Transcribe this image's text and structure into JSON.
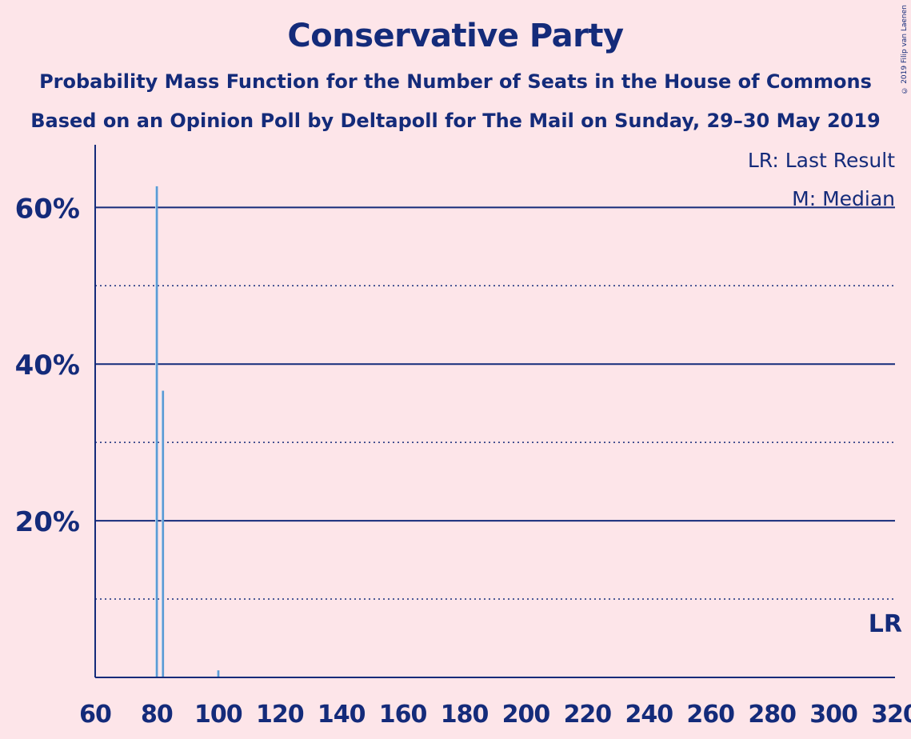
{
  "title": "Conservative Party",
  "subtitle1": "Probability Mass Function for the Number of Seats in the House of Commons",
  "subtitle2": "Based on an Opinion Poll by Deltapoll for The Mail on Sunday, 29–30 May 2019",
  "copyright": "© 2019 Filip van Laenen",
  "legend": {
    "last_result": "LR: Last Result",
    "median": "M: Median"
  },
  "lr_marker": "LR",
  "colors": {
    "background": "#FDE5E9",
    "axis": "#142B7A",
    "bar": "#5B9BD5"
  },
  "chart_data": {
    "type": "bar",
    "title": "Conservative Party",
    "xlabel": "",
    "ylabel": "",
    "xlim": [
      60,
      320
    ],
    "ylim": [
      0,
      0.68
    ],
    "x_ticks": [
      60,
      80,
      100,
      120,
      140,
      160,
      180,
      200,
      220,
      240,
      260,
      280,
      300,
      320
    ],
    "y_ticks": [
      {
        "value": 0.2,
        "label": "20%"
      },
      {
        "value": 0.4,
        "label": "40%"
      },
      {
        "value": 0.6,
        "label": "60%"
      }
    ],
    "minor_y_gridlines": [
      0.1,
      0.3,
      0.5
    ],
    "bars": [
      {
        "x": 80,
        "value": 0.627
      },
      {
        "x": 82,
        "value": 0.366
      },
      {
        "x": 100,
        "value": 0.009
      }
    ],
    "median": 80,
    "median_label": "M",
    "last_result": 318,
    "last_result_label": "LR",
    "legend_position": "top-right"
  }
}
